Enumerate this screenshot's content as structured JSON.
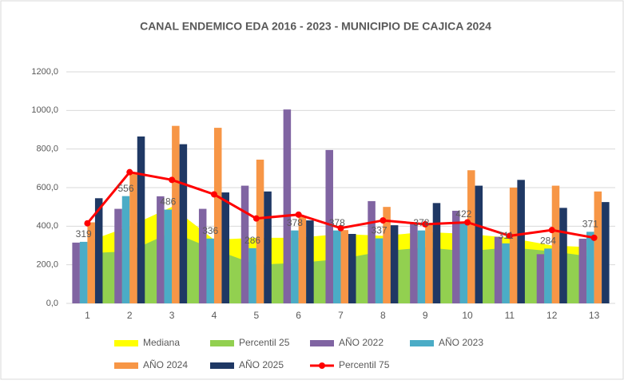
{
  "chart_data": {
    "type": "combo",
    "title": "CANAL ENDEMICO EDA 2016 - 2023 - MUNICIPIO DE CAJICA 2024",
    "categories": [
      "1",
      "2",
      "3",
      "4",
      "5",
      "6",
      "7",
      "8",
      "9",
      "10",
      "11",
      "12",
      "13"
    ],
    "ylim": [
      0,
      1200
    ],
    "yticks": [
      {
        "value": 0,
        "label": "0,0"
      },
      {
        "value": 200,
        "label": "200,0"
      },
      {
        "value": 400,
        "label": "400,0"
      },
      {
        "value": 600,
        "label": "600,0"
      },
      {
        "value": 800,
        "label": "800,0"
      },
      {
        "value": 1000,
        "label": "1000,0"
      },
      {
        "value": 1200,
        "label": "1200,0"
      }
    ],
    "grid": true,
    "series": [
      {
        "name": "Mediana",
        "kind": "area",
        "color": "#ffff00",
        "values": [
          320,
          400,
          500,
          330,
          340,
          340,
          360,
          350,
          370,
          360,
          340,
          300,
          290
        ]
      },
      {
        "name": "Percentil 25",
        "kind": "area",
        "color": "#92d050",
        "values": [
          260,
          270,
          370,
          280,
          200,
          210,
          230,
          270,
          290,
          270,
          290,
          270,
          240
        ]
      },
      {
        "name": "AÑO 2022",
        "kind": "bar",
        "color": "#8064a2",
        "values": [
          315,
          490,
          555,
          490,
          610,
          1005,
          795,
          530,
          420,
          480,
          345,
          255,
          335
        ]
      },
      {
        "name": "AÑO 2023",
        "kind": "bar",
        "color": "#4bacc6",
        "labels": true,
        "values": [
          319,
          556,
          486,
          336,
          286,
          378,
          378,
          337,
          378,
          422,
          311,
          284,
          371
        ]
      },
      {
        "name": "AÑO 2024",
        "kind": "bar",
        "color": "#f79646",
        "values": [
          420,
          680,
          920,
          910,
          745,
          450,
          380,
          500,
          415,
          690,
          600,
          610,
          580
        ]
      },
      {
        "name": "AÑO 2025",
        "kind": "bar",
        "color": "#1f3864",
        "values": [
          545,
          865,
          825,
          575,
          580,
          430,
          360,
          405,
          520,
          610,
          640,
          495,
          525
        ]
      },
      {
        "name": "Percentil 75",
        "kind": "line",
        "color": "#ff0000",
        "values": [
          415,
          680,
          640,
          565,
          440,
          460,
          390,
          430,
          410,
          420,
          350,
          380,
          340
        ]
      }
    ]
  }
}
